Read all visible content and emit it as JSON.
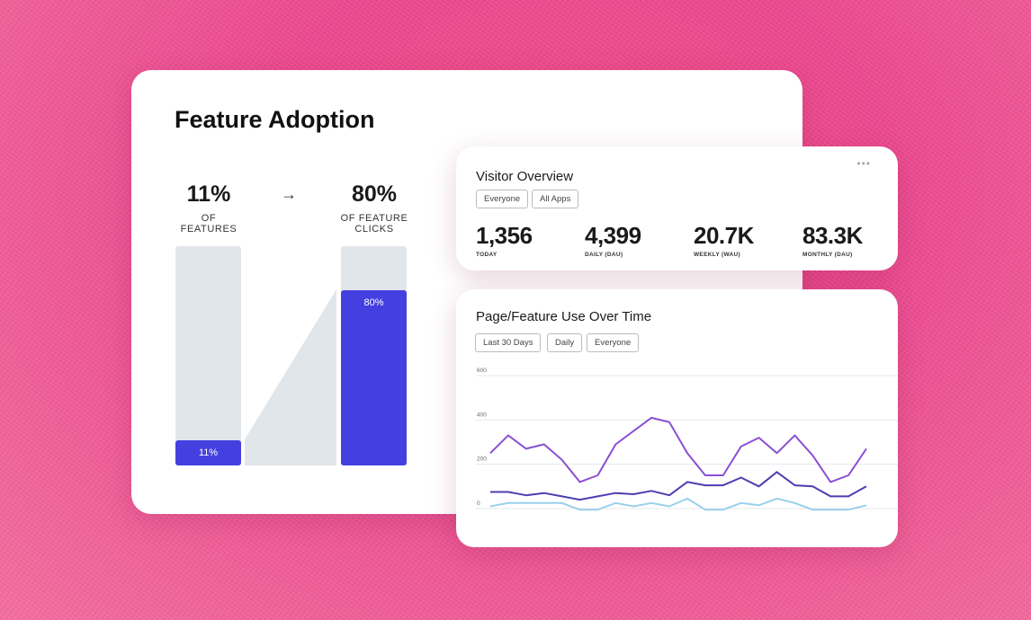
{
  "feature_adoption": {
    "title": "Feature Adoption",
    "left_metric": {
      "value": "11%",
      "caption": "OF FEATURES"
    },
    "right_metric": {
      "value": "80%",
      "caption": "OF FEATURE CLICKS"
    },
    "arrow_icon": "arrow-right-icon",
    "left_bar": {
      "label": "11%",
      "fill_fraction": 0.11
    },
    "right_bar": {
      "label": "80%",
      "fill_fraction": 0.8
    },
    "accent_color": "#4440e0",
    "track_color": "#e1e6ea"
  },
  "visitor_overview": {
    "title": "Visitor Overview",
    "menu_icon": "more-dots-icon",
    "filters": [
      "Everyone",
      "All Apps"
    ],
    "stats": [
      {
        "value": "1,356",
        "label": "TODAY"
      },
      {
        "value": "4,399",
        "label": "DAILY (DAU)"
      },
      {
        "value": "20.7K",
        "label": "WEEKLY (WAU)"
      },
      {
        "value": "83.3K",
        "label": "MONTHLY (DAU)"
      }
    ]
  },
  "page_feature_use": {
    "title": "Page/Feature Use Over Time",
    "filters": [
      "Last 30 Days",
      "Daily",
      "Everyone"
    ]
  },
  "chart_data": {
    "type": "line",
    "ylim": [
      0,
      600
    ],
    "yticks": [
      "600",
      "400",
      "200",
      "0"
    ],
    "grid": true,
    "series": [
      {
        "color": "#8a4fd4",
        "values": [
          250,
          330,
          270,
          290,
          220,
          120,
          150,
          290,
          350,
          410,
          390,
          250,
          150,
          150,
          280,
          320,
          250,
          330,
          240,
          120,
          150,
          270
        ]
      },
      {
        "color": "#4c3fb0",
        "values": [
          75,
          75,
          60,
          70,
          55,
          40,
          55,
          70,
          65,
          80,
          60,
          120,
          105,
          105,
          140,
          100,
          165,
          105,
          100,
          55,
          55,
          100
        ]
      },
      {
        "color": "#9ad0ec",
        "values": [
          10,
          25,
          25,
          25,
          25,
          -5,
          -5,
          25,
          10,
          25,
          10,
          45,
          -5,
          -5,
          25,
          15,
          45,
          25,
          -5,
          -5,
          -5,
          15
        ]
      }
    ]
  }
}
